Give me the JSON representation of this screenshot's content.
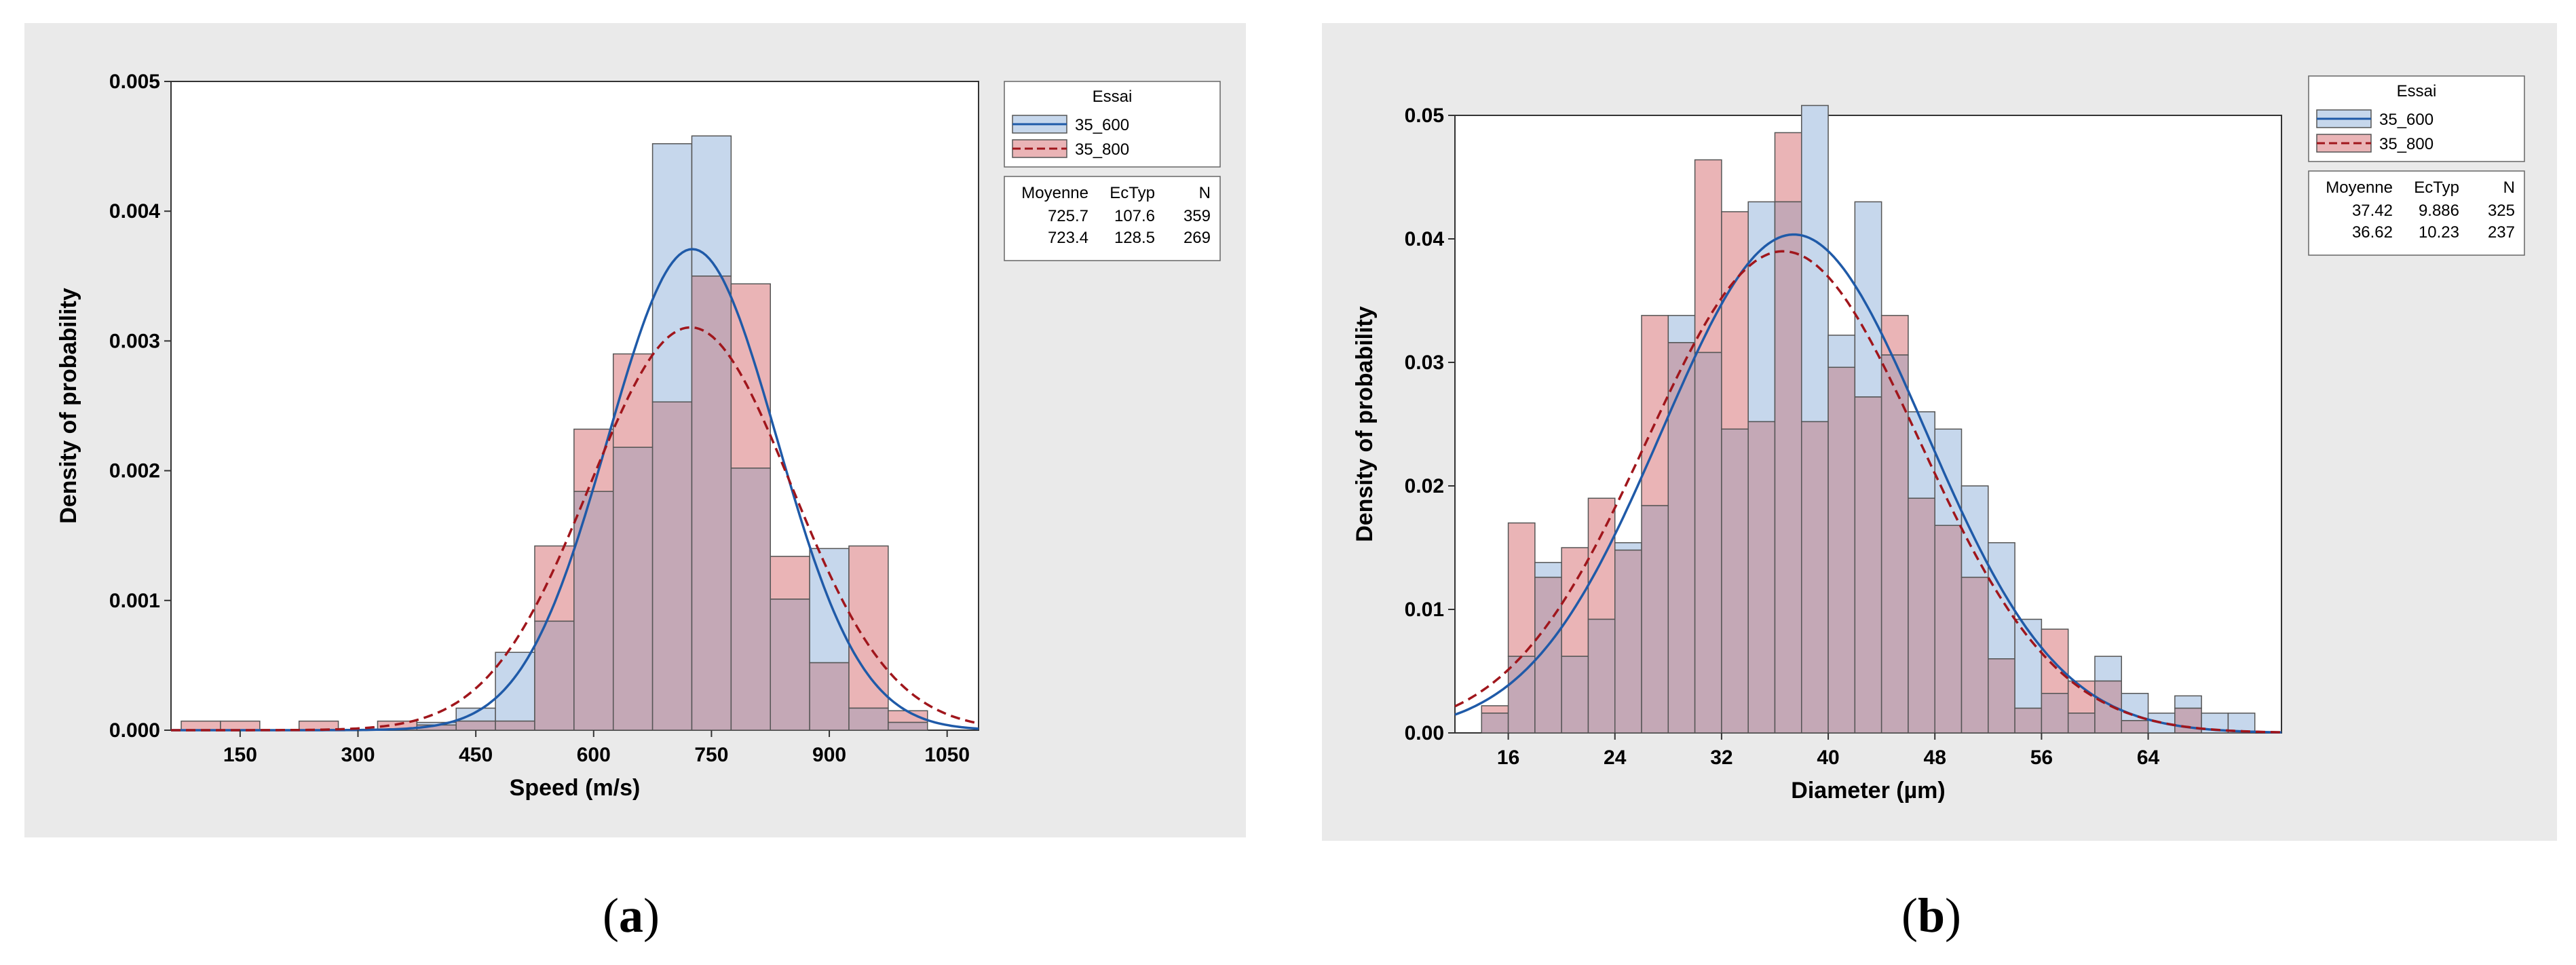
{
  "colors": {
    "panel_bg": "#eaeaea",
    "plot_bg": "#ffffff",
    "s600_fill": "#c6d7ec",
    "s800_fill": "#eab4b6",
    "overlap_fill": "#c4a8b6",
    "bar_edge": "#555555",
    "s600_line": "#1f5aa8",
    "s800_line": "#a0161c"
  },
  "captions": [
    {
      "open": "(",
      "letter": "a",
      "close": ")"
    },
    {
      "open": "(",
      "letter": "b",
      "close": ")"
    }
  ],
  "chart_data": [
    {
      "type": "bar",
      "title": "",
      "xlabel": "Speed (m/s)",
      "ylabel": "Density of probability",
      "xlim": [
        62,
        1090
      ],
      "ylim": [
        0,
        0.005
      ],
      "x_ticks": [
        150,
        300,
        450,
        600,
        750,
        900,
        1050
      ],
      "y_ticks": [
        0.0,
        0.001,
        0.002,
        0.003,
        0.004,
        0.005
      ],
      "y_tick_labels": [
        "0.000",
        "0.001",
        "0.002",
        "0.003",
        "0.004",
        "0.005"
      ],
      "bin_edges": [
        75,
        125,
        175,
        225,
        275,
        325,
        375,
        425,
        475,
        525,
        575,
        625,
        675,
        725,
        775,
        825,
        875,
        925,
        975,
        1025
      ],
      "series": [
        {
          "name": "35_600",
          "values": [
            0,
            0,
            0,
            0,
            0,
            0,
            6e-05,
            0.00017,
            0.0006,
            0.00084,
            0.00184,
            0.00218,
            0.00452,
            0.00458,
            0.00202,
            0.00101,
            0.0014,
            0.00017,
            6e-05
          ]
        },
        {
          "name": "35_800",
          "values": [
            7e-05,
            7e-05,
            0,
            7e-05,
            0,
            7e-05,
            4e-05,
            7e-05,
            7e-05,
            0.00142,
            0.00232,
            0.0029,
            0.00253,
            0.0035,
            0.00344,
            0.00134,
            0.00052,
            0.00142,
            0.00015
          ]
        }
      ],
      "fits": [
        {
          "name": "35_600",
          "mean": 725.7,
          "sd": 107.6,
          "n": 359,
          "bin_width": 50
        },
        {
          "name": "35_800",
          "mean": 723.4,
          "sd": 128.5,
          "n": 269,
          "bin_width": 50
        }
      ],
      "legend": {
        "title": "Essai",
        "entries": [
          "35_600",
          "35_800"
        ],
        "table_headers": [
          "Moyenne",
          "EcTyp",
          "N"
        ],
        "table_rows": [
          [
            "725.7",
            "107.6",
            "359"
          ],
          [
            "723.4",
            "128.5",
            "269"
          ]
        ]
      }
    },
    {
      "type": "bar",
      "title": "",
      "xlabel": "Diameter (µm)",
      "ylabel": "Density of probability",
      "xlim": [
        12,
        74
      ],
      "ylim": [
        0,
        0.05
      ],
      "x_ticks": [
        16,
        24,
        32,
        40,
        48,
        56,
        64
      ],
      "y_ticks": [
        0.0,
        0.01,
        0.02,
        0.03,
        0.04,
        0.05
      ],
      "y_tick_labels": [
        "0.00",
        "0.01",
        "0.02",
        "0.03",
        "0.04",
        "0.05"
      ],
      "bin_edges": [
        14,
        16,
        18,
        20,
        22,
        24,
        26,
        28,
        30,
        32,
        34,
        36,
        38,
        40,
        42,
        44,
        46,
        48,
        50,
        52,
        54,
        56,
        58,
        60,
        62,
        64,
        66,
        68,
        70,
        72
      ],
      "series": [
        {
          "name": "35_600",
          "values": [
            0.0016,
            0.0062,
            0.0138,
            0.0062,
            0.0092,
            0.0154,
            0.0184,
            0.0338,
            0.0308,
            0.0246,
            0.043,
            0.043,
            0.0508,
            0.0322,
            0.043,
            0.0306,
            0.026,
            0.0246,
            0.02,
            0.0154,
            0.0092,
            0.0032,
            0.0016,
            0.0062,
            0.0032,
            0.0016,
            0.003,
            0.0016,
            0.0016
          ]
        },
        {
          "name": "35_800",
          "values": [
            0.0022,
            0.017,
            0.0126,
            0.015,
            0.019,
            0.0148,
            0.0338,
            0.0316,
            0.0464,
            0.0422,
            0.0252,
            0.0486,
            0.0252,
            0.0296,
            0.0272,
            0.0338,
            0.019,
            0.0168,
            0.0126,
            0.006,
            0.002,
            0.0084,
            0.0042,
            0.0042,
            0.001,
            0,
            0.002,
            0,
            0
          ]
        }
      ],
      "fits": [
        {
          "name": "35_600",
          "mean": 37.42,
          "sd": 9.886,
          "n": 325,
          "bin_width": 2
        },
        {
          "name": "35_800",
          "mean": 36.62,
          "sd": 10.23,
          "n": 237,
          "bin_width": 2
        }
      ],
      "legend": {
        "title": "Essai",
        "entries": [
          "35_600",
          "35_800"
        ],
        "table_headers": [
          "Moyenne",
          "EcTyp",
          "N"
        ],
        "table_rows": [
          [
            "37.42",
            "9.886",
            "325"
          ],
          [
            "36.62",
            "10.23",
            "237"
          ]
        ]
      }
    }
  ]
}
